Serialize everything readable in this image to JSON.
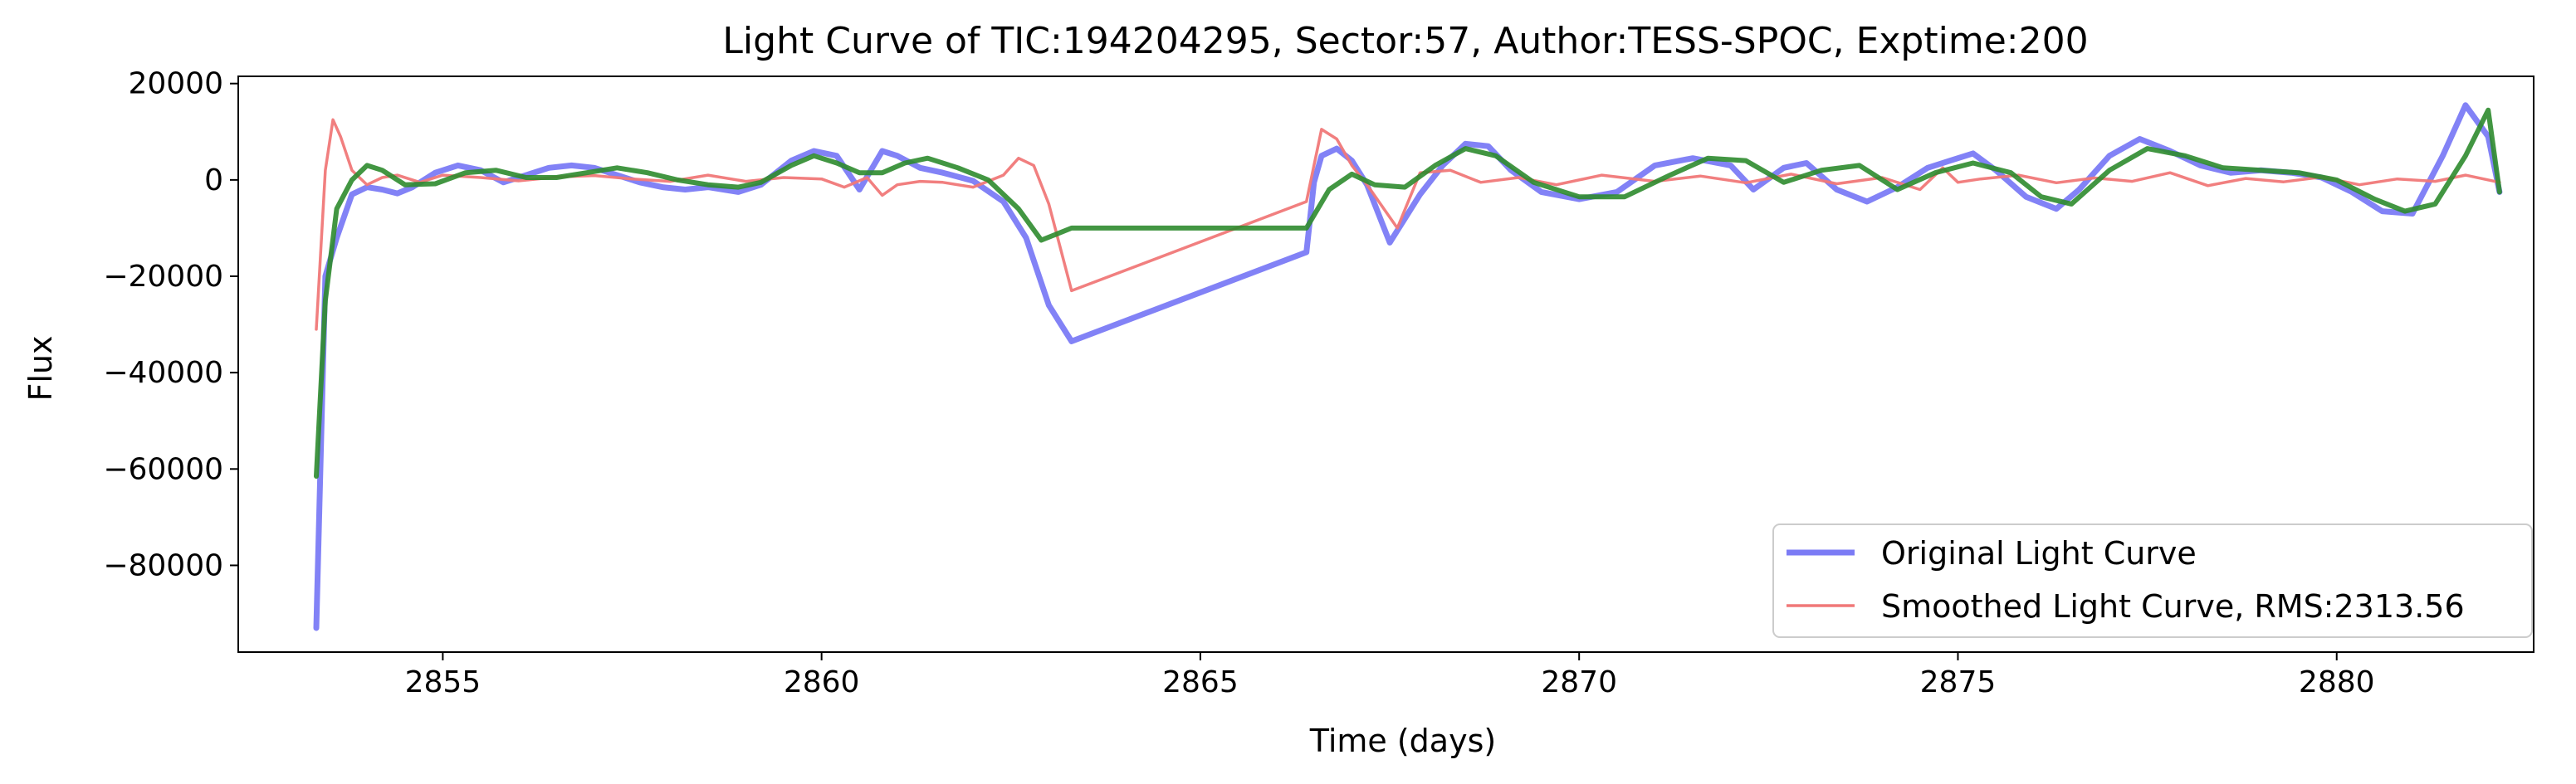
{
  "chart_data": {
    "type": "line",
    "title": "Light Curve of TIC:194204295, Sector:57, Author:TESS-SPOC, Exptime:200",
    "xlabel": "Time (days)",
    "ylabel": "Flux",
    "xlim": [
      2852.3,
      2882.6
    ],
    "ylim": [
      -98000,
      21500
    ],
    "xticks": [
      2855,
      2860,
      2865,
      2870,
      2875,
      2880
    ],
    "yticks": [
      20000,
      0,
      -20000,
      -40000,
      -60000,
      -80000
    ],
    "xtick_labels": [
      "2855",
      "2860",
      "2865",
      "2870",
      "2875",
      "2880"
    ],
    "ytick_labels": [
      "20000",
      "0",
      "−20000",
      "−40000",
      "−60000",
      "−80000"
    ],
    "grid": false,
    "legend_position": "lower-right",
    "legend_entries": [
      "Original Light Curve",
      "Smoothed Light Curve, RMS:2313.56"
    ],
    "series": [
      {
        "name": "Original Light Curve",
        "color": "#7b7bf5",
        "x": [
          2853.33,
          2853.45,
          2853.6,
          2853.8,
          2854.0,
          2854.2,
          2854.4,
          2854.6,
          2854.9,
          2855.2,
          2855.5,
          2855.8,
          2856.1,
          2856.4,
          2856.7,
          2857.0,
          2857.3,
          2857.6,
          2857.9,
          2858.2,
          2858.5,
          2858.9,
          2859.2,
          2859.6,
          2859.9,
          2860.2,
          2860.5,
          2860.8,
          2861.0,
          2861.3,
          2861.6,
          2862.0,
          2862.4,
          2862.7,
          2863.0,
          2863.3,
          2866.4,
          2866.5,
          2866.6,
          2866.8,
          2867.0,
          2867.2,
          2867.5,
          2867.9,
          2868.2,
          2868.5,
          2868.8,
          2869.1,
          2869.5,
          2870.0,
          2870.5,
          2871.0,
          2871.5,
          2872.0,
          2872.3,
          2872.7,
          2873.0,
          2873.4,
          2873.8,
          2874.2,
          2874.6,
          2874.9,
          2875.2,
          2875.5,
          2875.9,
          2876.3,
          2876.6,
          2877.0,
          2877.4,
          2877.8,
          2878.2,
          2878.6,
          2879.0,
          2879.4,
          2879.8,
          2880.2,
          2880.6,
          2881.0,
          2881.4,
          2881.7,
          2882.0,
          2882.15
        ],
        "y": [
          -93000,
          -20000,
          -12000,
          -3000,
          -1500,
          -2000,
          -2800,
          -1500,
          1500,
          3000,
          2000,
          -500,
          1000,
          2500,
          3000,
          2500,
          1000,
          -500,
          -1500,
          -2000,
          -1500,
          -2500,
          -1000,
          4000,
          6000,
          5000,
          -2000,
          6000,
          5000,
          2500,
          1500,
          -200,
          -4500,
          -12000,
          -26000,
          -33500,
          -15000,
          -500,
          5000,
          6500,
          4000,
          -1000,
          -13000,
          -3000,
          3000,
          7500,
          7000,
          2000,
          -2500,
          -4000,
          -2500,
          3000,
          4500,
          3000,
          -2000,
          2500,
          3500,
          -2000,
          -4500,
          -1500,
          2500,
          4000,
          5500,
          2000,
          -3500,
          -6000,
          -2000,
          5000,
          8500,
          6000,
          3000,
          1500,
          2000,
          1500,
          500,
          -2500,
          -6500,
          -7000,
          5000,
          15500,
          9000,
          -2500
        ]
      },
      {
        "name": "Smoothed Light Curve, RMS:2313.56",
        "color": "#f07878",
        "x": [
          2853.33,
          2853.45,
          2853.55,
          2853.65,
          2853.8,
          2854.0,
          2854.2,
          2854.4,
          2854.7,
          2855.0,
          2855.5,
          2856.0,
          2856.5,
          2857.0,
          2857.5,
          2858.0,
          2858.5,
          2859.0,
          2859.5,
          2860.0,
          2860.3,
          2860.6,
          2860.8,
          2861.0,
          2861.3,
          2861.6,
          2862.0,
          2862.4,
          2862.6,
          2862.8,
          2863.0,
          2863.3,
          2866.4,
          2866.5,
          2866.6,
          2866.8,
          2867.0,
          2867.2,
          2867.6,
          2867.9,
          2868.3,
          2868.7,
          2869.2,
          2869.7,
          2870.3,
          2871.0,
          2871.6,
          2872.2,
          2872.8,
          2873.4,
          2874.0,
          2874.5,
          2874.8,
          2875.0,
          2875.3,
          2875.8,
          2876.3,
          2876.8,
          2877.3,
          2877.8,
          2878.3,
          2878.8,
          2879.3,
          2879.8,
          2880.3,
          2880.8,
          2881.3,
          2881.7,
          2882.15
        ],
        "y": [
          -31000,
          2000,
          12500,
          9000,
          2000,
          -1000,
          500,
          1000,
          -500,
          1000,
          500,
          -200,
          600,
          900,
          200,
          -300,
          1000,
          -300,
          500,
          200,
          -1500,
          500,
          -3200,
          -1000,
          -300,
          -500,
          -1500,
          1000,
          4500,
          3000,
          -5000,
          -23000,
          -4500,
          3000,
          10500,
          8500,
          3000,
          -1000,
          -10000,
          1500,
          2000,
          -500,
          500,
          -1000,
          1000,
          -300,
          800,
          -600,
          1200,
          -800,
          500,
          -2000,
          2500,
          -500,
          200,
          1000,
          -600,
          400,
          -300,
          1500,
          -1200,
          300,
          -400,
          600,
          -1000,
          200,
          -300,
          1000,
          -500
        ]
      },
      {
        "name": "",
        "color": "#2e8b2e",
        "x": [
          2853.33,
          2853.45,
          2853.6,
          2853.8,
          2854.0,
          2854.2,
          2854.5,
          2854.9,
          2855.3,
          2855.7,
          2856.1,
          2856.5,
          2856.9,
          2857.3,
          2857.7,
          2858.1,
          2858.5,
          2858.9,
          2859.2,
          2859.6,
          2859.9,
          2860.2,
          2860.5,
          2860.8,
          2861.1,
          2861.4,
          2861.8,
          2862.2,
          2862.6,
          2862.9,
          2863.3,
          2866.4,
          2866.7,
          2867.0,
          2867.3,
          2867.7,
          2868.1,
          2868.5,
          2868.9,
          2869.4,
          2870.0,
          2870.6,
          2871.2,
          2871.7,
          2872.2,
          2872.7,
          2873.2,
          2873.7,
          2874.2,
          2874.7,
          2875.2,
          2875.7,
          2876.1,
          2876.5,
          2877.0,
          2877.5,
          2878.0,
          2878.5,
          2879.0,
          2879.5,
          2880.0,
          2880.5,
          2880.9,
          2881.3,
          2881.7,
          2882.0,
          2882.15
        ],
        "y": [
          -61500,
          -25000,
          -6000,
          0,
          3000,
          2000,
          -1000,
          -800,
          1500,
          2000,
          500,
          500,
          1500,
          2500,
          1500,
          0,
          -1000,
          -1500,
          -500,
          3000,
          5000,
          3500,
          1500,
          1500,
          3500,
          4500,
          2500,
          0,
          -6000,
          -12500,
          -10000,
          -10000,
          -2000,
          1200,
          -1000,
          -1500,
          3000,
          6500,
          5000,
          -500,
          -3500,
          -3500,
          1000,
          4500,
          4000,
          -500,
          2000,
          3000,
          -2000,
          1500,
          3500,
          1500,
          -3500,
          -5000,
          2000,
          6500,
          5000,
          2500,
          2000,
          1500,
          0,
          -4000,
          -6500,
          -5000,
          5000,
          14500,
          -2500
        ]
      }
    ]
  }
}
